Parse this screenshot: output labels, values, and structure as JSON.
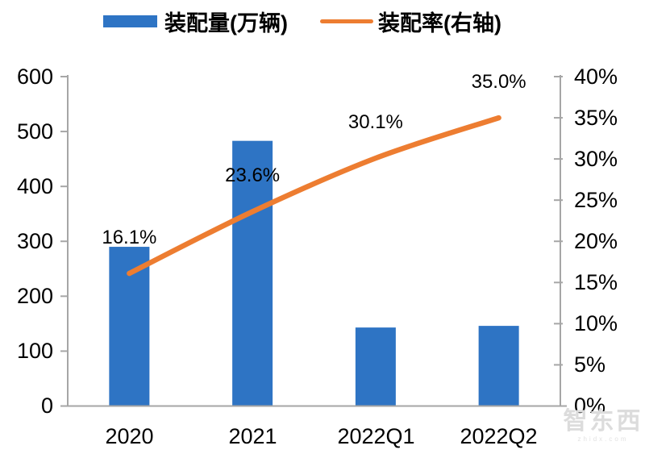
{
  "chart_data": {
    "type": "bar+line combo, dual axis",
    "categories": [
      "2020",
      "2021",
      "2022Q1",
      "2022Q2"
    ],
    "series": [
      {
        "name": "装配量(万辆)",
        "type": "bar",
        "axis": "left",
        "color": "#2E74C4",
        "values": [
          290,
          483,
          143,
          146
        ]
      },
      {
        "name": "装配率(右轴)",
        "type": "line",
        "axis": "right",
        "color": "#ED7D31",
        "values": [
          16.1,
          23.6,
          30.1,
          35.0
        ],
        "data_labels": [
          "16.1%",
          "23.6%",
          "30.1%",
          "35.0%"
        ]
      }
    ],
    "left_axis": {
      "min": 0,
      "max": 600,
      "ticks": [
        "600",
        "500",
        "400",
        "300",
        "200",
        "100",
        "0"
      ]
    },
    "right_axis": {
      "min": 0,
      "max": 40,
      "ticks": [
        "40%",
        "35%",
        "30%",
        "25%",
        "20%",
        "15%",
        "10%",
        "5%",
        "0%"
      ]
    },
    "grid": false,
    "legend_position": "top",
    "axis_color": "#A6A6A6",
    "text_color": "#000000"
  },
  "watermark": {
    "text": "智东西",
    "subtext": "zhidx.com"
  }
}
